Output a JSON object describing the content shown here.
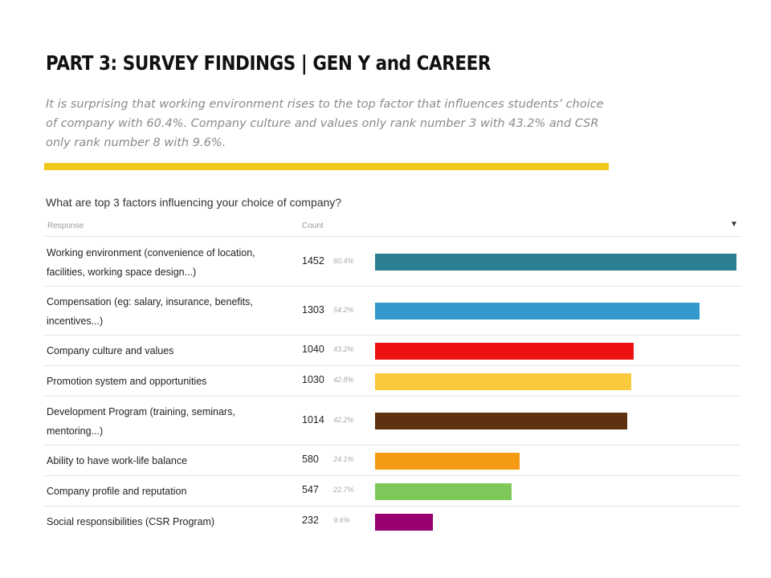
{
  "header": {
    "title": "PART 3: SURVEY FINDINGS | GEN Y and CAREER",
    "subtitle": "It is surprising that working environment rises to the top factor that influences students’ choice of company with 60.4%. Company culture and values only rank number 3 with 43.2% and CSR only rank number 8 with 9.6%."
  },
  "colors": {
    "rule": "#f2c71c"
  },
  "chart_data": {
    "type": "bar",
    "orientation": "horizontal",
    "question": "What are top 3 factors influencing your choice of company?",
    "columns": {
      "response": "Response",
      "count": "Count"
    },
    "sort_icon": "caret-down-icon",
    "xlim": [
      0,
      1452
    ],
    "categories": [
      "Working environment (convenience of location, facilities, working space design...)",
      "Compensation (eg: salary, insurance, benefits, incentives...)",
      "Company culture and values",
      "Promotion system and opportunities",
      "Development Program (training, seminars, mentoring...)",
      "Ability to have work-life balance",
      "Company profile and reputation",
      "Social responsibilities (CSR Program)"
    ],
    "values": [
      1452,
      1303,
      1040,
      1030,
      1014,
      580,
      547,
      232
    ],
    "percents": [
      "60.4%",
      "54.2%",
      "43.2%",
      "42.8%",
      "42.2%",
      "24.1%",
      "22.7%",
      "9.6%"
    ],
    "colors": [
      "#2c7f93",
      "#3399cc",
      "#ee1111",
      "#fbc93c",
      "#5e3210",
      "#f59a14",
      "#7ec85a",
      "#990070"
    ]
  }
}
